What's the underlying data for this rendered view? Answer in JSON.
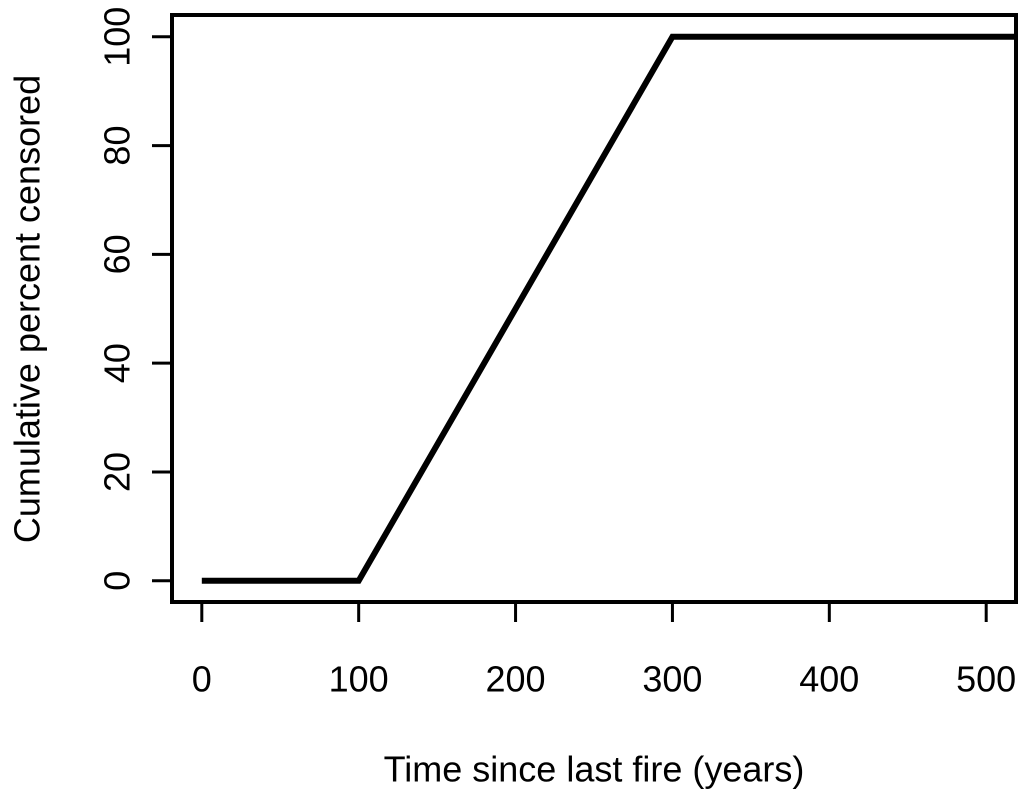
{
  "chart_data": {
    "type": "line",
    "x_label": "Time since last fire (years)",
    "y_label": "Cumulative percent censored",
    "x": [
      0,
      100,
      300,
      519
    ],
    "series": [
      {
        "color": "#000000",
        "values": [
          0,
          0,
          100,
          100
        ]
      }
    ],
    "xlim": [
      -19,
      519
    ],
    "ylim": [
      -3.9,
      104
    ],
    "xticks": [
      0,
      100,
      200,
      300,
      400,
      500
    ],
    "yticks": [
      0,
      20,
      40,
      60,
      80,
      100
    ],
    "grid": false
  }
}
